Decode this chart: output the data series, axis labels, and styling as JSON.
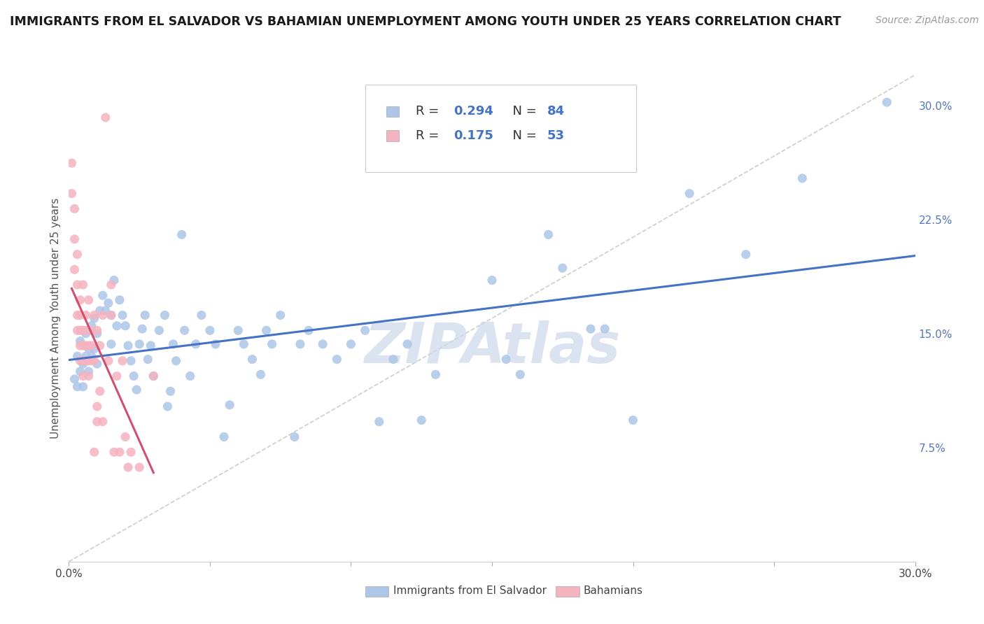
{
  "title": "IMMIGRANTS FROM EL SALVADOR VS BAHAMIAN UNEMPLOYMENT AMONG YOUTH UNDER 25 YEARS CORRELATION CHART",
  "source": "Source: ZipAtlas.com",
  "ylabel": "Unemployment Among Youth under 25 years",
  "xlim": [
    0.0,
    0.3
  ],
  "ylim": [
    0.0,
    0.32
  ],
  "x_ticks": [
    0.0,
    0.05,
    0.1,
    0.15,
    0.2,
    0.25,
    0.3
  ],
  "x_tick_labels": [
    "0.0%",
    "",
    "",
    "",
    "",
    "",
    "30.0%"
  ],
  "y_ticks_right": [
    0.0,
    0.075,
    0.15,
    0.225,
    0.3
  ],
  "y_tick_labels_right": [
    "",
    "7.5%",
    "15.0%",
    "22.5%",
    "30.0%"
  ],
  "blue_R": 0.294,
  "blue_N": 84,
  "pink_R": 0.175,
  "pink_N": 53,
  "blue_color": "#adc6e8",
  "pink_color": "#f5b3c0",
  "blue_line_color": "#4472c4",
  "pink_line_color": "#d05070",
  "legend_text_dark": "#333333",
  "legend_text_blue": "#4472c4",
  "blue_scatter": [
    [
      0.002,
      0.12
    ],
    [
      0.003,
      0.115
    ],
    [
      0.003,
      0.135
    ],
    [
      0.004,
      0.145
    ],
    [
      0.004,
      0.125
    ],
    [
      0.005,
      0.13
    ],
    [
      0.005,
      0.115
    ],
    [
      0.006,
      0.15
    ],
    [
      0.006,
      0.135
    ],
    [
      0.007,
      0.14
    ],
    [
      0.007,
      0.125
    ],
    [
      0.008,
      0.155
    ],
    [
      0.008,
      0.135
    ],
    [
      0.009,
      0.16
    ],
    [
      0.009,
      0.14
    ],
    [
      0.01,
      0.15
    ],
    [
      0.01,
      0.13
    ],
    [
      0.011,
      0.165
    ],
    [
      0.012,
      0.175
    ],
    [
      0.013,
      0.165
    ],
    [
      0.014,
      0.17
    ],
    [
      0.015,
      0.162
    ],
    [
      0.015,
      0.143
    ],
    [
      0.016,
      0.185
    ],
    [
      0.017,
      0.155
    ],
    [
      0.018,
      0.172
    ],
    [
      0.019,
      0.162
    ],
    [
      0.02,
      0.155
    ],
    [
      0.021,
      0.142
    ],
    [
      0.022,
      0.132
    ],
    [
      0.023,
      0.122
    ],
    [
      0.024,
      0.113
    ],
    [
      0.025,
      0.143
    ],
    [
      0.026,
      0.153
    ],
    [
      0.027,
      0.162
    ],
    [
      0.028,
      0.133
    ],
    [
      0.029,
      0.142
    ],
    [
      0.03,
      0.122
    ],
    [
      0.032,
      0.152
    ],
    [
      0.034,
      0.162
    ],
    [
      0.035,
      0.102
    ],
    [
      0.036,
      0.112
    ],
    [
      0.037,
      0.143
    ],
    [
      0.038,
      0.132
    ],
    [
      0.04,
      0.215
    ],
    [
      0.041,
      0.152
    ],
    [
      0.043,
      0.122
    ],
    [
      0.045,
      0.143
    ],
    [
      0.047,
      0.162
    ],
    [
      0.05,
      0.152
    ],
    [
      0.052,
      0.143
    ],
    [
      0.055,
      0.082
    ],
    [
      0.057,
      0.103
    ],
    [
      0.06,
      0.152
    ],
    [
      0.062,
      0.143
    ],
    [
      0.065,
      0.133
    ],
    [
      0.068,
      0.123
    ],
    [
      0.07,
      0.152
    ],
    [
      0.072,
      0.143
    ],
    [
      0.075,
      0.162
    ],
    [
      0.08,
      0.082
    ],
    [
      0.082,
      0.143
    ],
    [
      0.085,
      0.152
    ],
    [
      0.09,
      0.143
    ],
    [
      0.095,
      0.133
    ],
    [
      0.1,
      0.143
    ],
    [
      0.105,
      0.152
    ],
    [
      0.11,
      0.092
    ],
    [
      0.115,
      0.133
    ],
    [
      0.12,
      0.143
    ],
    [
      0.125,
      0.093
    ],
    [
      0.13,
      0.123
    ],
    [
      0.15,
      0.185
    ],
    [
      0.155,
      0.133
    ],
    [
      0.16,
      0.123
    ],
    [
      0.17,
      0.215
    ],
    [
      0.175,
      0.193
    ],
    [
      0.185,
      0.153
    ],
    [
      0.19,
      0.153
    ],
    [
      0.2,
      0.093
    ],
    [
      0.22,
      0.242
    ],
    [
      0.24,
      0.202
    ],
    [
      0.26,
      0.252
    ],
    [
      0.29,
      0.302
    ]
  ],
  "pink_scatter": [
    [
      0.001,
      0.262
    ],
    [
      0.001,
      0.242
    ],
    [
      0.002,
      0.192
    ],
    [
      0.002,
      0.232
    ],
    [
      0.002,
      0.212
    ],
    [
      0.003,
      0.182
    ],
    [
      0.003,
      0.162
    ],
    [
      0.003,
      0.152
    ],
    [
      0.003,
      0.202
    ],
    [
      0.004,
      0.172
    ],
    [
      0.004,
      0.162
    ],
    [
      0.004,
      0.152
    ],
    [
      0.004,
      0.142
    ],
    [
      0.004,
      0.132
    ],
    [
      0.005,
      0.182
    ],
    [
      0.005,
      0.152
    ],
    [
      0.005,
      0.142
    ],
    [
      0.005,
      0.132
    ],
    [
      0.005,
      0.122
    ],
    [
      0.006,
      0.162
    ],
    [
      0.006,
      0.152
    ],
    [
      0.006,
      0.142
    ],
    [
      0.006,
      0.132
    ],
    [
      0.007,
      0.172
    ],
    [
      0.007,
      0.142
    ],
    [
      0.007,
      0.132
    ],
    [
      0.007,
      0.122
    ],
    [
      0.008,
      0.152
    ],
    [
      0.008,
      0.142
    ],
    [
      0.008,
      0.132
    ],
    [
      0.009,
      0.162
    ],
    [
      0.009,
      0.132
    ],
    [
      0.009,
      0.072
    ],
    [
      0.01,
      0.152
    ],
    [
      0.01,
      0.102
    ],
    [
      0.01,
      0.092
    ],
    [
      0.011,
      0.142
    ],
    [
      0.011,
      0.112
    ],
    [
      0.012,
      0.162
    ],
    [
      0.012,
      0.092
    ],
    [
      0.013,
      0.292
    ],
    [
      0.014,
      0.132
    ],
    [
      0.015,
      0.182
    ],
    [
      0.015,
      0.162
    ],
    [
      0.016,
      0.072
    ],
    [
      0.017,
      0.122
    ],
    [
      0.018,
      0.072
    ],
    [
      0.019,
      0.132
    ],
    [
      0.02,
      0.082
    ],
    [
      0.021,
      0.062
    ],
    [
      0.022,
      0.072
    ],
    [
      0.025,
      0.062
    ],
    [
      0.03,
      0.122
    ]
  ],
  "watermark": "ZIPAtlas",
  "watermark_color": "#ccd8ea",
  "background_color": "#ffffff",
  "grid_color": "#dddddd",
  "title_fontsize": 12.5,
  "source_fontsize": 10
}
